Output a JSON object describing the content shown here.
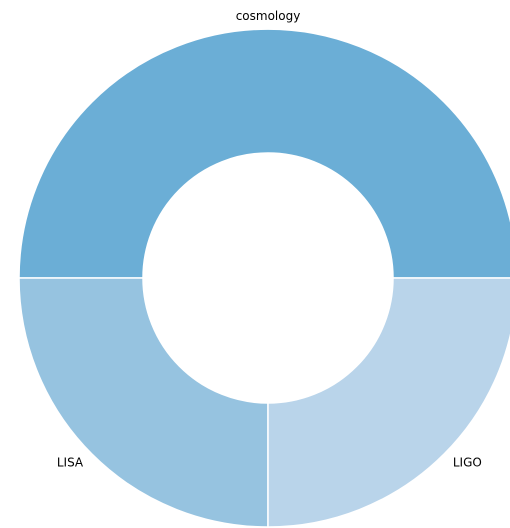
{
  "chart_data": {
    "type": "pie",
    "categories": [
      "cosmology",
      "LISA",
      "LIGO"
    ],
    "values": [
      50,
      25,
      25
    ],
    "colors": [
      "#6baed6",
      "#96c3e0",
      "#b9d4ea"
    ],
    "donut": true
  }
}
